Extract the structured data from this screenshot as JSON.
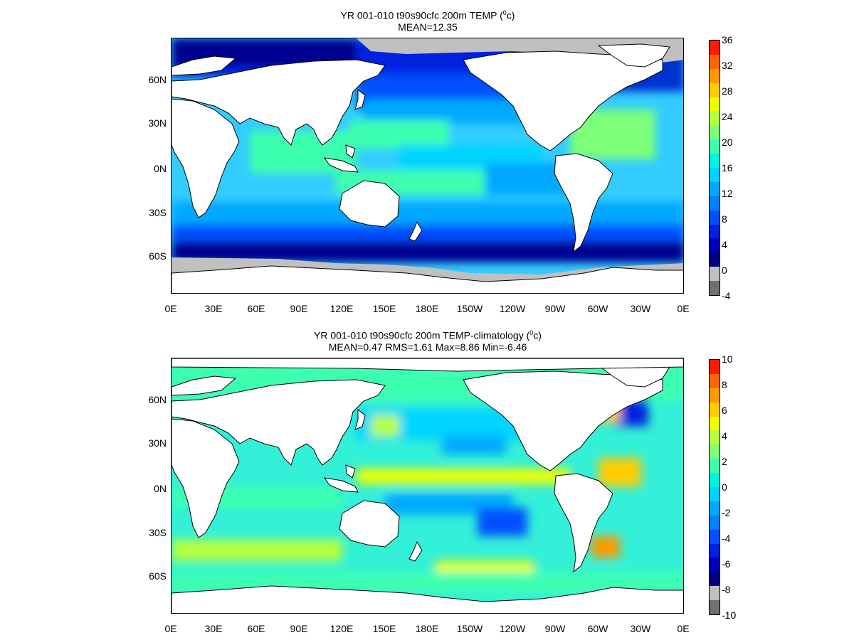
{
  "panels": [
    {
      "title_prefix": "YR 001-010 t90s90cfc 200m TEMP (",
      "unit_sup": "0",
      "title_suffix": "c)",
      "stats": "MEAN=12.35",
      "colorbar": {
        "ticks": [
          "36",
          "32",
          "28",
          "24",
          "20",
          "16",
          "12",
          "8",
          "4",
          "0",
          "-4"
        ],
        "colors": [
          "#ff1a00",
          "#ff6600",
          "#ff9900",
          "#ffcc00",
          "#f0ff00",
          "#b8ff3d",
          "#7dff7a",
          "#3dffb0",
          "#00f5e0",
          "#00d4ff",
          "#00a8ff",
          "#0080ff",
          "#0050ff",
          "#0022e0",
          "#0000b8",
          "#000080",
          "#c0c0c0",
          "#707070"
        ]
      }
    },
    {
      "title_prefix": "YR 001-010 t90s90cfc 200m TEMP-climatology (",
      "unit_sup": "0",
      "title_suffix": "c)",
      "stats": "MEAN=0.47   RMS=1.61   Max=8.86   Min=-6.46",
      "colorbar": {
        "ticks": [
          "10",
          "8",
          "6",
          "4",
          "2",
          "0",
          "-2",
          "-4",
          "-6",
          "-8",
          "-10"
        ],
        "colors": [
          "#ff1a00",
          "#ff6600",
          "#ff9900",
          "#ffcc00",
          "#f0ff00",
          "#b8ff3d",
          "#7dff7a",
          "#3dffb0",
          "#00f5e0",
          "#00d4ff",
          "#00a8ff",
          "#0080ff",
          "#0050ff",
          "#0022e0",
          "#0000b8",
          "#000080",
          "#c0c0c0",
          "#707070"
        ]
      }
    }
  ],
  "lat_labels": [
    "60N",
    "30N",
    "0N",
    "30S",
    "60S"
  ],
  "lon_labels": [
    "0E",
    "30E",
    "60E",
    "90E",
    "120E",
    "150E",
    "180E",
    "150W",
    "120W",
    "90W",
    "60W",
    "30W",
    "0E"
  ]
}
